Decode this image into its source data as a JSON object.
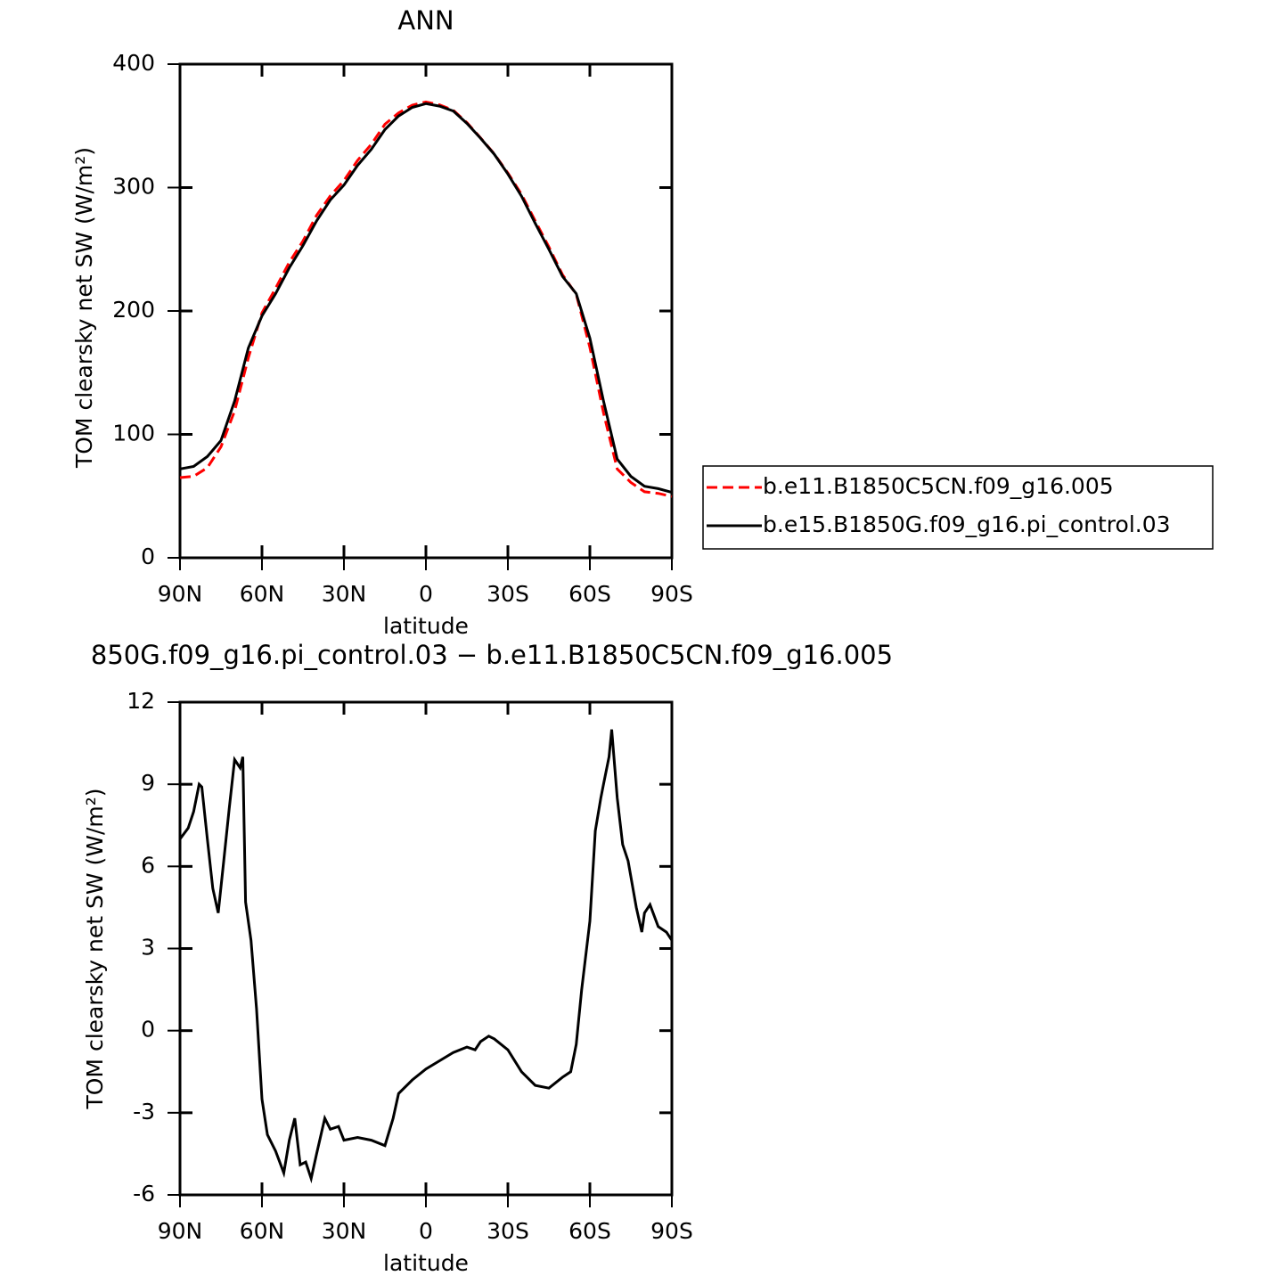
{
  "chart_data": [
    {
      "type": "line",
      "title": "ANN",
      "x_label": "latitude",
      "y_label": "TOM clearsky net SW (W/m²)",
      "x": [
        90,
        85,
        80,
        75,
        70,
        65,
        60,
        55,
        50,
        45,
        40,
        35,
        30,
        25,
        20,
        15,
        10,
        5,
        0,
        -5,
        -10,
        -15,
        -20,
        -25,
        -30,
        -35,
        -40,
        -45,
        -50,
        -55,
        -60,
        -65,
        -70,
        -75,
        -80,
        -85,
        -90
      ],
      "series": [
        {
          "name": "b.e11.B1850C5CN.f09_g16.005",
          "color": "#ff0000",
          "dash": true,
          "values": [
            65,
            66,
            73,
            90,
            119,
            162,
            198.5,
            218.4,
            239.5,
            256.7,
            277.5,
            293.3,
            305.7,
            322,
            335,
            351.3,
            360.5,
            366.8,
            369.4,
            367,
            362.7,
            352.6,
            340.3,
            327.3,
            311.8,
            294.5,
            273,
            251.9,
            229.4,
            213.5,
            170.5,
            117.5,
            72,
            61,
            53.5,
            52.2,
            49.7
          ]
        },
        {
          "name": "b.e15.B1850G.f09_g16.pi_control.03",
          "color": "#000000",
          "dash": false,
          "values": [
            72,
            74,
            82,
            95,
            127,
            170,
            196,
            214,
            235,
            253,
            273,
            290,
            302,
            318,
            331,
            347,
            358,
            365,
            368,
            366,
            362,
            352,
            340,
            327,
            311,
            293,
            271,
            250,
            228,
            214,
            178,
            127,
            80,
            66,
            58,
            56,
            53
          ]
        }
      ],
      "xlim": [
        90,
        -90
      ],
      "xticks": [
        {
          "value": 90,
          "label": "90N"
        },
        {
          "value": 60,
          "label": "60N"
        },
        {
          "value": 30,
          "label": "30N"
        },
        0,
        {
          "value": -30,
          "label": "30S"
        },
        {
          "value": -60,
          "label": "60S"
        },
        {
          "value": -90,
          "label": "90S"
        }
      ],
      "ylim": [
        0,
        400
      ],
      "yticks": [
        0,
        100,
        200,
        300,
        400
      ],
      "legend": "right"
    },
    {
      "type": "line",
      "title": "850G.f09_g16.pi_control.03 − b.e11.B1850C5CN.f09_g16.005",
      "x_label": "latitude",
      "y_label": "TOM clearsky net SW (W/m²)",
      "x": [
        90,
        87,
        85,
        83,
        82,
        80,
        78,
        76,
        74,
        72,
        70,
        68,
        67,
        66,
        64,
        62,
        60,
        58,
        55,
        52,
        50,
        48,
        46,
        44,
        42,
        40,
        37,
        35,
        32,
        30,
        25,
        20,
        15,
        12,
        10,
        5,
        0,
        -5,
        -10,
        -15,
        -18,
        -20,
        -23,
        -25,
        -30,
        -35,
        -40,
        -45,
        -50,
        -53,
        -55,
        -57,
        -60,
        -62,
        -64,
        -65,
        -67,
        -68,
        -70,
        -72,
        -74,
        -77,
        -79,
        -80,
        -82,
        -85,
        -88,
        -90
      ],
      "series": [
        {
          "color": "#000000",
          "dash": false,
          "values": [
            7.0,
            7.4,
            8.0,
            9.0,
            8.9,
            7.0,
            5.2,
            4.3,
            6.2,
            8.1,
            9.9,
            9.6,
            10.0,
            4.7,
            3.3,
            0.8,
            -2.5,
            -3.8,
            -4.4,
            -5.2,
            -4.0,
            -3.2,
            -4.9,
            -4.8,
            -5.4,
            -4.5,
            -3.2,
            -3.6,
            -3.5,
            -4.0,
            -3.9,
            -4.0,
            -4.2,
            -3.2,
            -2.3,
            -1.8,
            -1.4,
            -1.1,
            -0.8,
            -0.6,
            -0.7,
            -0.4,
            -0.2,
            -0.3,
            -0.7,
            -1.5,
            -2.0,
            -2.1,
            -1.7,
            -1.5,
            -0.5,
            1.5,
            4.0,
            7.3,
            8.5,
            9.0,
            10.0,
            11.0,
            8.5,
            6.8,
            6.2,
            4.5,
            3.6,
            4.3,
            4.6,
            3.8,
            3.6,
            3.3
          ]
        }
      ],
      "xlim": [
        90,
        -90
      ],
      "xticks": [
        {
          "value": 90,
          "label": "90N"
        },
        {
          "value": 60,
          "label": "60N"
        },
        {
          "value": 30,
          "label": "30N"
        },
        0,
        {
          "value": -30,
          "label": "30S"
        },
        {
          "value": -60,
          "label": "60S"
        },
        {
          "value": -90,
          "label": "90S"
        }
      ],
      "ylim": [
        -6,
        12
      ],
      "yticks": [
        -6,
        -3,
        0,
        3,
        6,
        9,
        12
      ]
    }
  ]
}
